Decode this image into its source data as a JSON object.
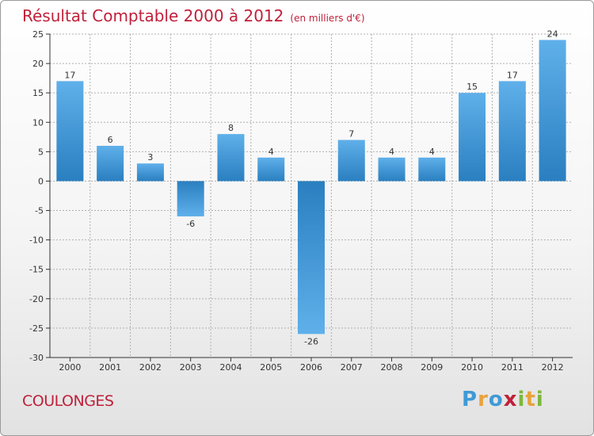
{
  "chart_data": {
    "type": "bar",
    "title": "Résultat Comptable 2000 à 2012",
    "subtitle": "(en milliers d'€)",
    "categories": [
      "2000",
      "2001",
      "2002",
      "2003",
      "2004",
      "2005",
      "2006",
      "2007",
      "2008",
      "2009",
      "2010",
      "2011",
      "2012"
    ],
    "values": [
      17,
      6,
      3,
      -6,
      8,
      4,
      -26,
      7,
      4,
      4,
      15,
      17,
      24
    ],
    "ylim": [
      -30,
      25
    ],
    "yticks": [
      25,
      20,
      15,
      10,
      5,
      0,
      -5,
      -10,
      -15,
      -20,
      -25,
      -30
    ],
    "grid": true,
    "xlabel": "",
    "ylabel": ""
  },
  "footer": {
    "place": "COULONGES",
    "logo_letters": [
      "P",
      "r",
      "o",
      "x",
      "i",
      "t",
      "i"
    ]
  },
  "colors": {
    "title": "#c0203a",
    "bar_dark": "#2a7fc0",
    "bar_light": "#5fb0ea",
    "grid": "#b0b0b0",
    "logo": [
      "#3f9ad6",
      "#e8a33c",
      "#3f9ad6",
      "#c0203a",
      "#7cb83a",
      "#e8a33c",
      "#7cb83a"
    ]
  }
}
